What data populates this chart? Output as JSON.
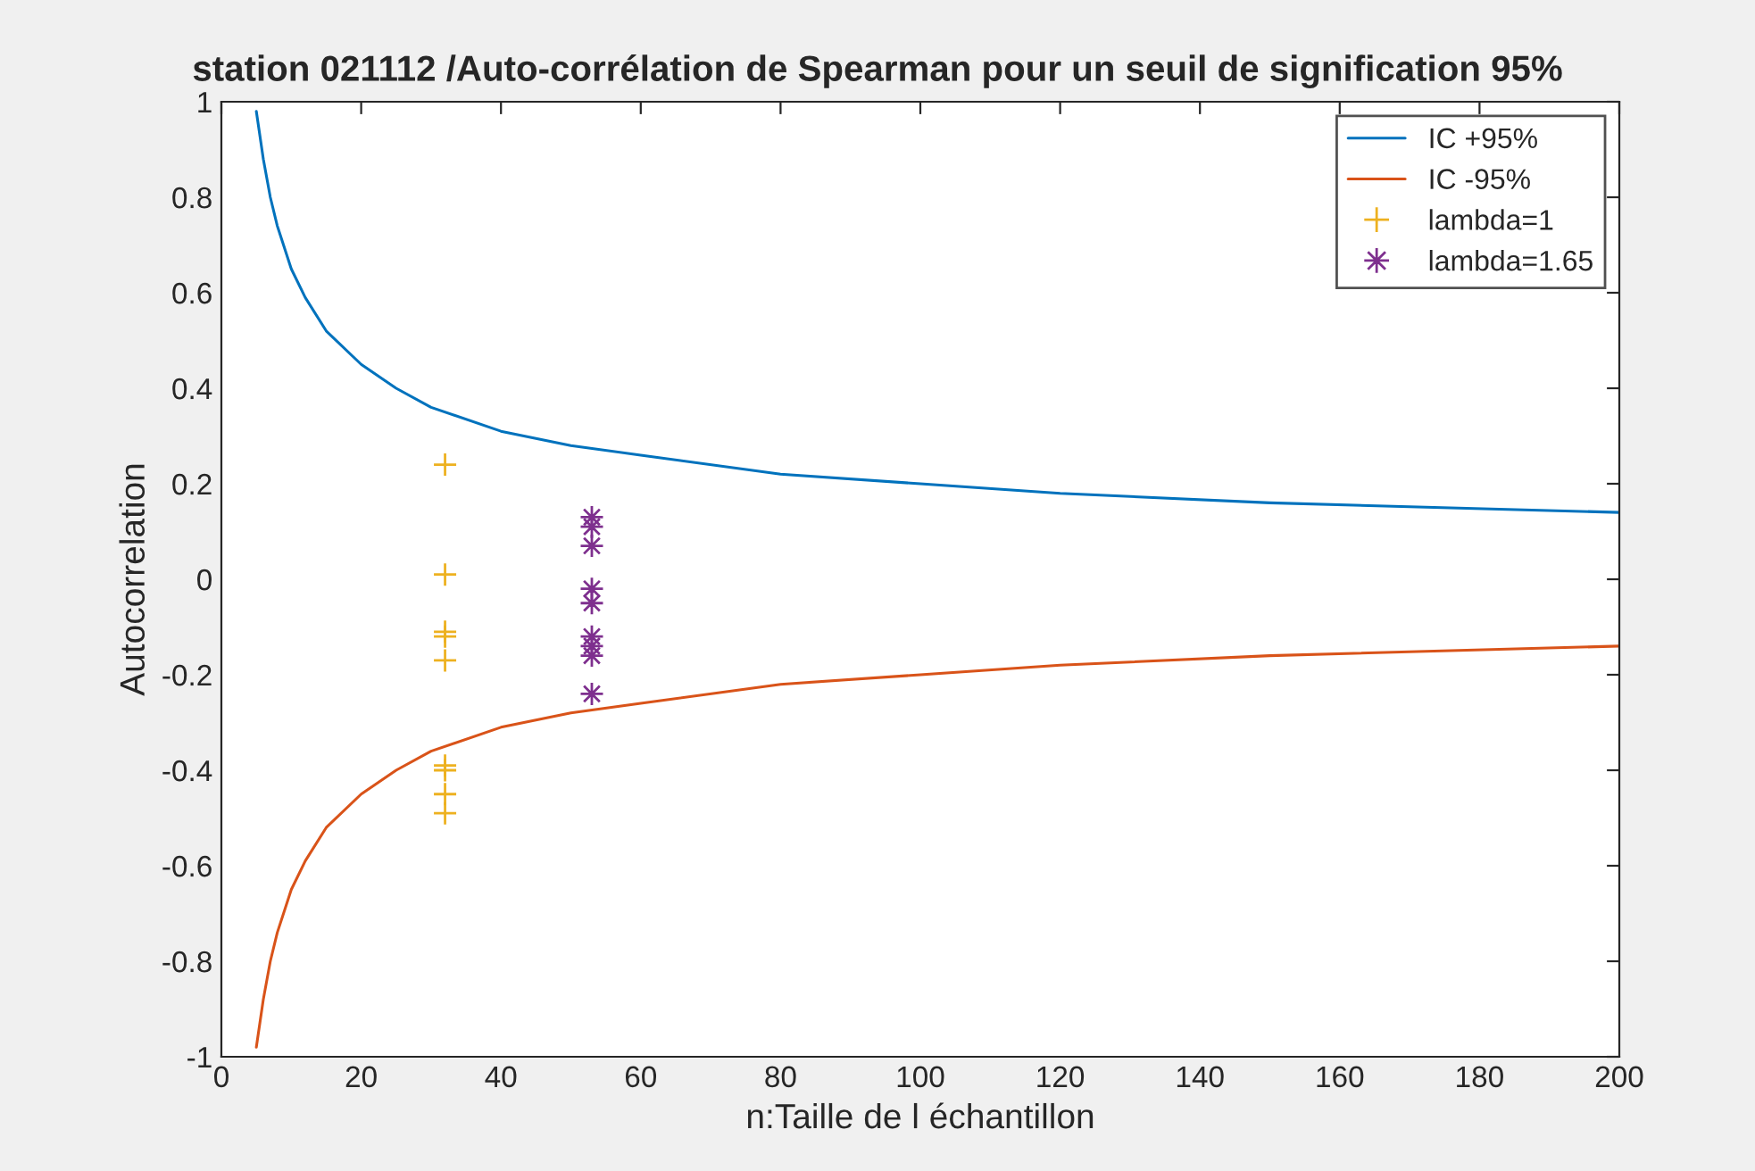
{
  "chart_data": {
    "type": "line",
    "title": "station 021112 /Auto-corrélation de Spearman pour un seuil de signification 95%",
    "xlabel": "n:Taille de l échantillon",
    "ylabel": "Autocorrelation",
    "xlim": [
      0,
      200
    ],
    "ylim": [
      -1,
      1
    ],
    "xticks": [
      0,
      20,
      40,
      60,
      80,
      100,
      120,
      140,
      160,
      180,
      200
    ],
    "yticks": [
      -1,
      -0.8,
      -0.6,
      -0.4,
      -0.2,
      0,
      0.2,
      0.4,
      0.6,
      0.8,
      1
    ],
    "grid": false,
    "legend": "top right",
    "series": [
      {
        "name": "IC +95%",
        "color": "#0072bd",
        "marker": "none",
        "line_style": "solid",
        "x": [
          5,
          6,
          7,
          8,
          10,
          12,
          15,
          20,
          25,
          30,
          40,
          50,
          60,
          80,
          100,
          120,
          150,
          200
        ],
        "values": [
          0.98,
          0.88,
          0.8,
          0.74,
          0.65,
          0.59,
          0.52,
          0.45,
          0.4,
          0.36,
          0.31,
          0.28,
          0.26,
          0.22,
          0.2,
          0.18,
          0.16,
          0.14
        ]
      },
      {
        "name": "IC -95%",
        "color": "#d95319",
        "marker": "none",
        "line_style": "solid",
        "x": [
          5,
          6,
          7,
          8,
          10,
          12,
          15,
          20,
          25,
          30,
          40,
          50,
          60,
          80,
          100,
          120,
          150,
          200
        ],
        "values": [
          -0.98,
          -0.88,
          -0.8,
          -0.74,
          -0.65,
          -0.59,
          -0.52,
          -0.45,
          -0.4,
          -0.36,
          -0.31,
          -0.28,
          -0.26,
          -0.22,
          -0.2,
          -0.18,
          -0.16,
          -0.14
        ]
      },
      {
        "name": "lambda=1",
        "type": "scatter",
        "color": "#edb120",
        "marker": "cross",
        "x": [
          32,
          32,
          32,
          32,
          32,
          32,
          32,
          32,
          32
        ],
        "values": [
          0.24,
          0.01,
          -0.11,
          -0.12,
          -0.17,
          -0.39,
          -0.4,
          -0.45,
          -0.49
        ]
      },
      {
        "name": "lambda=1.65",
        "type": "scatter",
        "color": "#7e2f8e",
        "marker": "star",
        "x": [
          53,
          53,
          53,
          53,
          53,
          53,
          53,
          53,
          53
        ],
        "values": [
          0.13,
          0.11,
          0.07,
          -0.02,
          -0.05,
          -0.12,
          -0.14,
          -0.16,
          -0.24
        ]
      }
    ]
  }
}
